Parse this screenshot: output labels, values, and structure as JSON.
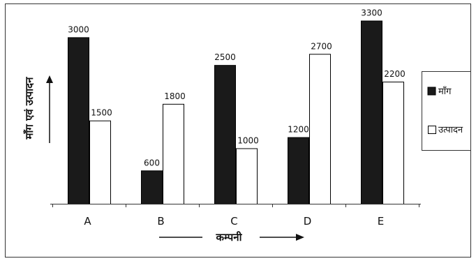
{
  "chart_data": {
    "type": "bar",
    "categories": [
      "A",
      "B",
      "C",
      "D",
      "E"
    ],
    "series": [
      {
        "name": "माँग",
        "values": [
          3000,
          600,
          2500,
          1200,
          3300
        ],
        "color": "#1a1a1a"
      },
      {
        "name": "उत्पादन",
        "values": [
          1500,
          1800,
          1000,
          2700,
          2200
        ],
        "color": "#ffffff"
      }
    ],
    "xlabel": "कम्पनी",
    "ylabel": "माँग एवं उत्पादन",
    "ylim": [
      0,
      3420
    ],
    "legend_position": "right",
    "grid": false
  }
}
